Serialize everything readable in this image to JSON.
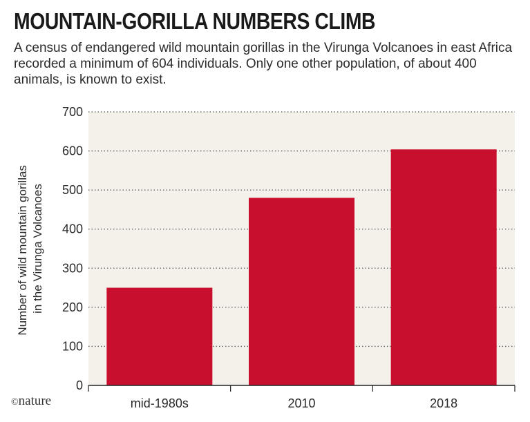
{
  "title": "MOUNTAIN-GORILLA NUMBERS CLIMB",
  "subtitle": "A census of endangered wild mountain gorillas in the Virunga Volcanoes in east Africa recorded a minimum of 604 individuals. Only one other population, of about 400 animals, is known to exist.",
  "credit": {
    "symbol": "©",
    "name": "nature"
  },
  "colors": {
    "bar": "#c8102e",
    "plot_background": "#f3f1ea",
    "grid": "#555555",
    "axis": "#222222"
  },
  "chart_data": {
    "type": "bar",
    "categories": [
      "mid-1980s",
      "2010",
      "2018"
    ],
    "values": [
      250,
      480,
      604
    ],
    "ylabel": [
      "Number of wild mountain gorillas",
      "in the Virunga Volcanoes"
    ],
    "ylim": [
      0,
      700
    ],
    "yticks": [
      0,
      100,
      200,
      300,
      400,
      500,
      600,
      700
    ],
    "grid": true,
    "grid_style": "dotted"
  }
}
